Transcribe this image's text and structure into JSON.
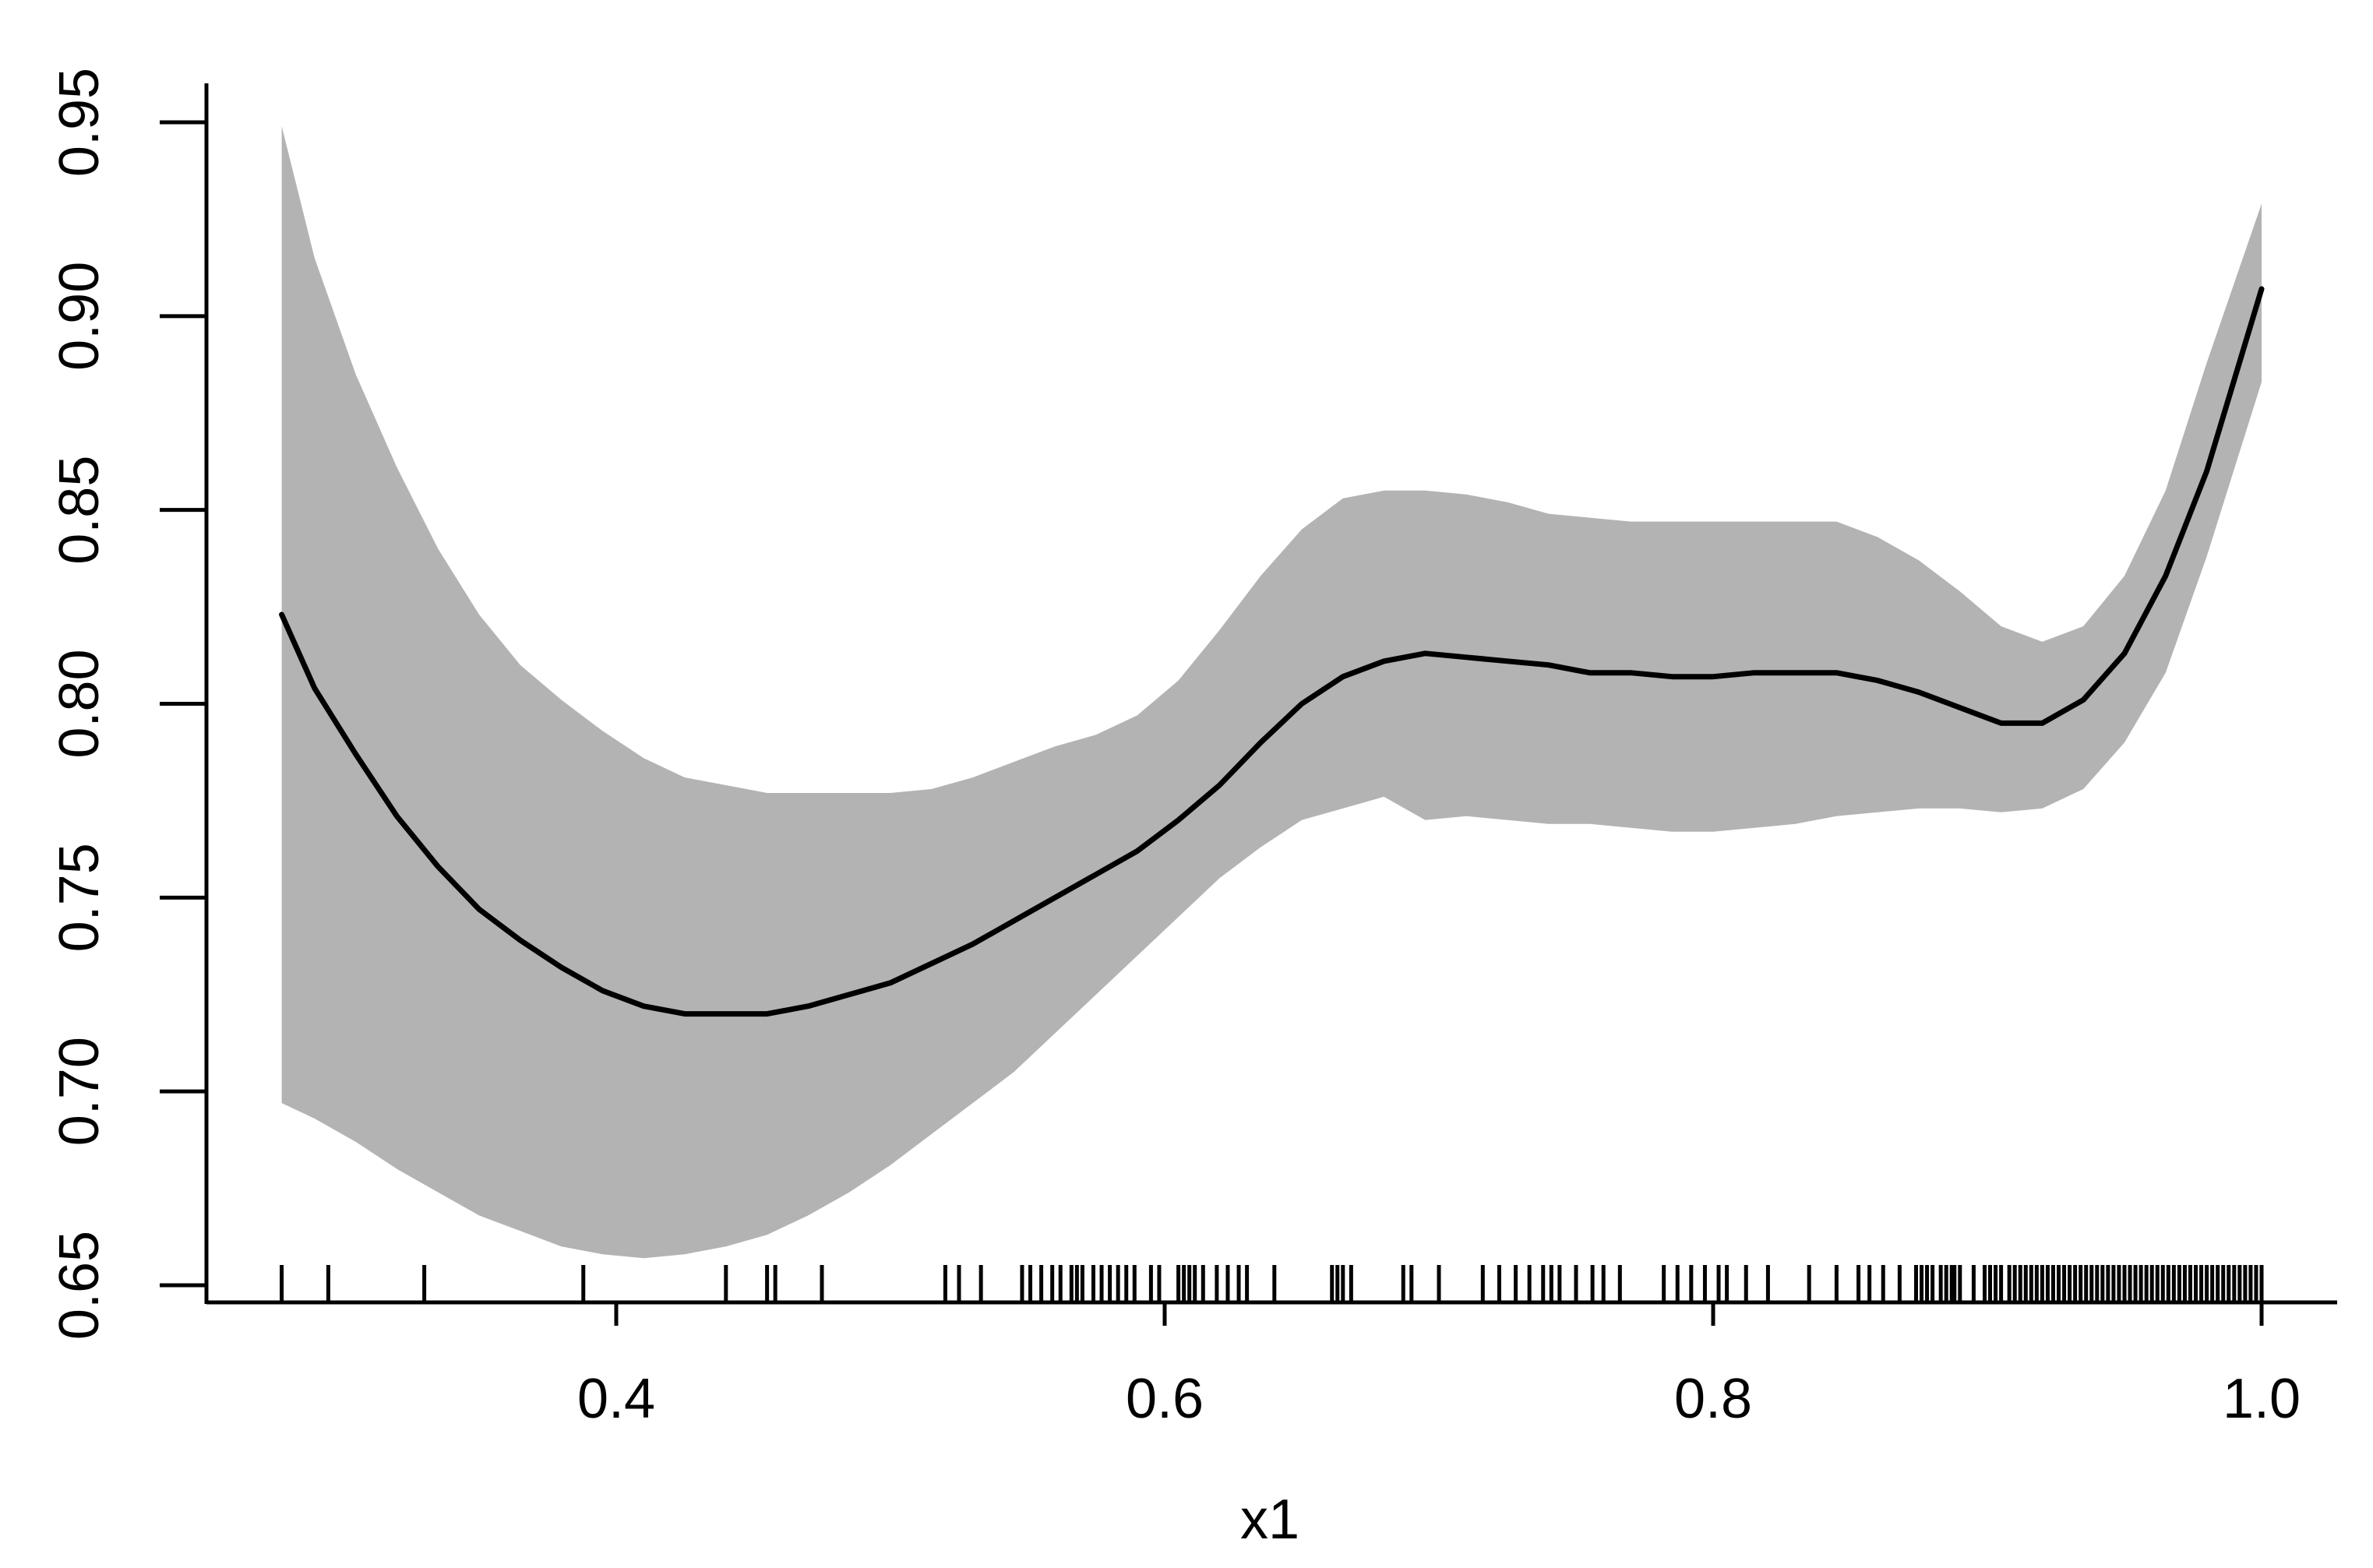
{
  "chart_data": {
    "type": "line",
    "title": "",
    "xlabel": "x1",
    "ylabel": "",
    "xlim": [
      0.25,
      1.03
    ],
    "ylim": [
      0.645,
      0.955
    ],
    "x_ticks": [
      "0.4",
      "0.6",
      "0.8",
      "1.0"
    ],
    "y_ticks": [
      "0.65",
      "0.70",
      "0.75",
      "0.80",
      "0.85",
      "0.90",
      "0.95"
    ],
    "grid": false,
    "legend": "none",
    "colors": {
      "line": "#000000",
      "band": "#b3b3b3",
      "axis": "#000000"
    },
    "series": [
      {
        "x": [
          0.278,
          0.29,
          0.305,
          0.32,
          0.335,
          0.35,
          0.365,
          0.38,
          0.395,
          0.41,
          0.425,
          0.44,
          0.455,
          0.47,
          0.485,
          0.5,
          0.515,
          0.53,
          0.545,
          0.56,
          0.575,
          0.59,
          0.605,
          0.62,
          0.635,
          0.65,
          0.665,
          0.68,
          0.695,
          0.71,
          0.725,
          0.74,
          0.755,
          0.77,
          0.785,
          0.8,
          0.815,
          0.83,
          0.845,
          0.86,
          0.875,
          0.89,
          0.905,
          0.92,
          0.935,
          0.95,
          0.965,
          0.98,
          1.0
        ],
        "values": [
          0.823,
          0.804,
          0.787,
          0.771,
          0.758,
          0.747,
          0.739,
          0.732,
          0.726,
          0.722,
          0.72,
          0.72,
          0.72,
          0.722,
          0.725,
          0.728,
          0.733,
          0.738,
          0.744,
          0.75,
          0.756,
          0.762,
          0.77,
          0.779,
          0.79,
          0.8,
          0.807,
          0.811,
          0.813,
          0.812,
          0.811,
          0.81,
          0.808,
          0.808,
          0.807,
          0.807,
          0.808,
          0.808,
          0.808,
          0.806,
          0.803,
          0.799,
          0.795,
          0.795,
          0.801,
          0.813,
          0.833,
          0.86,
          0.907
        ],
        "lower": [
          0.697,
          0.693,
          0.687,
          0.68,
          0.674,
          0.668,
          0.664,
          0.66,
          0.658,
          0.657,
          0.658,
          0.66,
          0.663,
          0.668,
          0.674,
          0.681,
          0.689,
          0.697,
          0.705,
          0.715,
          0.725,
          0.735,
          0.745,
          0.755,
          0.763,
          0.77,
          0.773,
          0.776,
          0.77,
          0.771,
          0.77,
          0.769,
          0.769,
          0.768,
          0.767,
          0.767,
          0.768,
          0.769,
          0.771,
          0.772,
          0.773,
          0.773,
          0.772,
          0.773,
          0.778,
          0.79,
          0.808,
          0.838,
          0.883
        ],
        "upper": [
          0.949,
          0.915,
          0.885,
          0.861,
          0.84,
          0.823,
          0.81,
          0.801,
          0.793,
          0.786,
          0.781,
          0.779,
          0.777,
          0.777,
          0.777,
          0.777,
          0.778,
          0.781,
          0.785,
          0.789,
          0.792,
          0.797,
          0.806,
          0.819,
          0.833,
          0.845,
          0.853,
          0.855,
          0.855,
          0.854,
          0.852,
          0.849,
          0.848,
          0.847,
          0.847,
          0.847,
          0.847,
          0.847,
          0.847,
          0.843,
          0.837,
          0.829,
          0.82,
          0.816,
          0.82,
          0.833,
          0.855,
          0.888,
          0.929
        ]
      }
    ],
    "rug": [
      0.278,
      0.295,
      0.33,
      0.388,
      0.44,
      0.455,
      0.458,
      0.475,
      0.52,
      0.525,
      0.533,
      0.548,
      0.551,
      0.555,
      0.559,
      0.562,
      0.566,
      0.568,
      0.57,
      0.574,
      0.577,
      0.58,
      0.583,
      0.586,
      0.589,
      0.595,
      0.598,
      0.605,
      0.607,
      0.609,
      0.611,
      0.614,
      0.619,
      0.623,
      0.627,
      0.63,
      0.64,
      0.661,
      0.663,
      0.665,
      0.668,
      0.687,
      0.69,
      0.7,
      0.716,
      0.722,
      0.728,
      0.733,
      0.738,
      0.741,
      0.744,
      0.75,
      0.756,
      0.76,
      0.766,
      0.782,
      0.787,
      0.792,
      0.797,
      0.802,
      0.805,
      0.812,
      0.82,
      0.835,
      0.845,
      0.853,
      0.857,
      0.862,
      0.868,
      0.874,
      0.876,
      0.878,
      0.88,
      0.883,
      0.885,
      0.887,
      0.888,
      0.89,
      0.895,
      0.899,
      0.901,
      0.903,
      0.905,
      0.908,
      0.91,
      0.912,
      0.914,
      0.916,
      0.918,
      0.92,
      0.922,
      0.924,
      0.926,
      0.928,
      0.93,
      0.932,
      0.934,
      0.936,
      0.938,
      0.94,
      0.942,
      0.944,
      0.946,
      0.948,
      0.95,
      0.952,
      0.954,
      0.956,
      0.958,
      0.96,
      0.962,
      0.964,
      0.966,
      0.968,
      0.97,
      0.972,
      0.974,
      0.976,
      0.978,
      0.98,
      0.982,
      0.984,
      0.986,
      0.988,
      0.99,
      0.992,
      0.994,
      0.996,
      0.998,
      1.0
    ]
  }
}
